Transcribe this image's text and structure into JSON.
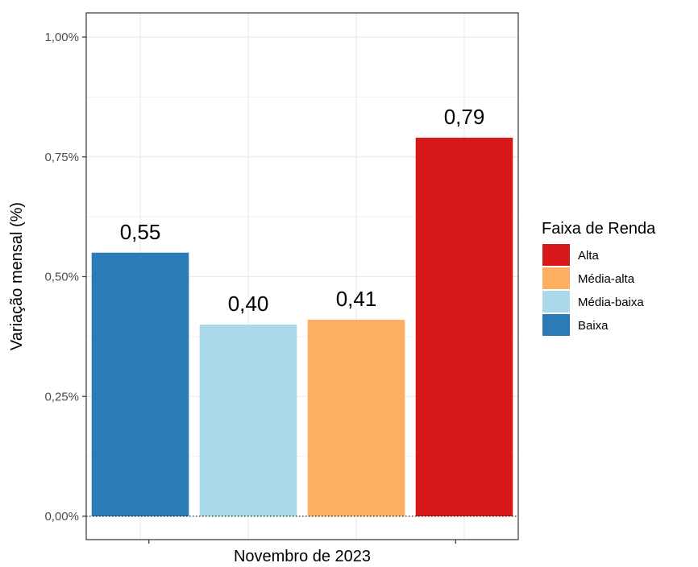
{
  "chart_data": {
    "type": "bar",
    "xlabel": "Novembro de 2023",
    "ylabel": "Variação mensal (%)",
    "ylim": [
      0,
      1.05
    ],
    "yticks": [
      0,
      0.25,
      0.5,
      0.75,
      1.0
    ],
    "ytick_labels": [
      "0,00%",
      "0,25%",
      "0,50%",
      "0,75%",
      "1,00%"
    ],
    "grid": true,
    "reference_line": {
      "y": 0,
      "style": "dotted"
    },
    "bars": [
      {
        "category": "Baixa",
        "value": 0.55,
        "label": "0,55",
        "color": "#2c7bb6"
      },
      {
        "category": "Média-baixa",
        "value": 0.4,
        "label": "0,40",
        "color": "#abd9e9"
      },
      {
        "category": "Média-alta",
        "value": 0.41,
        "label": "0,41",
        "color": "#fdae61"
      },
      {
        "category": "Alta",
        "value": 0.79,
        "label": "0,79",
        "color": "#d7191c"
      }
    ],
    "legend": {
      "title": "Faixa de Renda",
      "position": "right",
      "entries": [
        {
          "label": "Alta",
          "color": "#d7191c"
        },
        {
          "label": "Média-alta",
          "color": "#fdae61"
        },
        {
          "label": "Média-baixa",
          "color": "#abd9e9"
        },
        {
          "label": "Baixa",
          "color": "#2c7bb6"
        }
      ]
    }
  }
}
